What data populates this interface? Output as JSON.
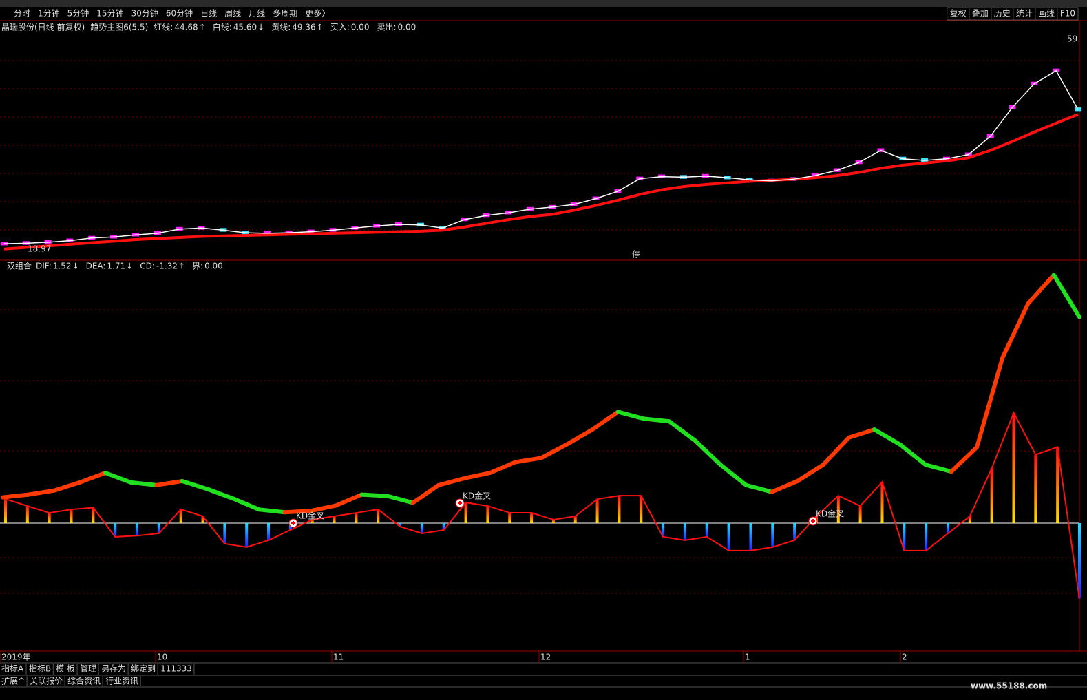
{
  "toolbar": {
    "periods": [
      "分时",
      "1分钟",
      "5分钟",
      "15分钟",
      "30分钟",
      "60分钟",
      "日线",
      "周线",
      "月线",
      "多周期",
      "更多〉"
    ],
    "active": 6,
    "tools": [
      "复权",
      "叠加",
      "历史",
      "统计",
      "画线",
      "F10"
    ]
  },
  "main": {
    "stock": "晶瑞股份(日线 前复权)",
    "indicator": "趋势主图6(5,5)",
    "legend": [
      {
        "label": "红线:",
        "value": "44.68",
        "arrow": "↑",
        "color": "#ff2020"
      },
      {
        "label": "白线:",
        "value": "45.60",
        "arrow": "↓",
        "color": "#ffffff"
      },
      {
        "label": "黄线:",
        "value": "49.36",
        "arrow": "↑",
        "color": "#ffff00"
      },
      {
        "label": "买入:",
        "value": "0.00",
        "arrow": "",
        "color": "#ff2020"
      },
      {
        "label": "卖出:",
        "value": "0.00",
        "arrow": "",
        "color": "#20a0ff"
      }
    ],
    "low": 18.97,
    "high_text": "59.",
    "stop_mark": "停",
    "open": [
      19.7,
      19.8,
      20.0,
      20.3,
      20.8,
      21.0,
      21.4,
      21.7,
      22.5,
      22.7,
      23.0,
      22.5,
      21.7,
      21.8,
      22.0,
      22.3,
      22.7,
      23.1,
      23.4,
      24.0,
      23.4,
      24.3,
      25.1,
      25.6,
      26.3,
      26.7,
      27.2,
      28.3,
      29.7,
      32.1,
      32.5,
      33.1,
      32.6,
      33.0,
      32.6,
      31.7,
      32.0,
      32.7,
      33.7,
      35.2,
      37.5,
      36.6,
      36.3,
      35.9,
      36.7,
      40.2,
      45.7,
      50.2,
      52.7,
      46.0
    ],
    "close": [
      20.4,
      20.5,
      20.7,
      21.0,
      21.5,
      21.7,
      22.1,
      22.4,
      23.2,
      23.4,
      22.3,
      21.8,
      22.4,
      22.5,
      22.7,
      23.0,
      23.4,
      23.8,
      24.1,
      23.3,
      22.7,
      25.0,
      25.8,
      26.3,
      27.0,
      27.4,
      27.9,
      29.0,
      30.4,
      32.8,
      33.2,
      32.4,
      33.3,
      32.3,
      31.9,
      32.4,
      32.7,
      33.4,
      34.4,
      35.9,
      38.2,
      35.9,
      35.6,
      36.6,
      37.4,
      40.9,
      46.4,
      50.9,
      53.4,
      45.3
    ],
    "white_line": [
      20.0,
      20.1,
      20.3,
      20.6,
      21.1,
      21.3,
      21.7,
      22.0,
      22.8,
      23.0,
      22.6,
      22.1,
      22.0,
      22.1,
      22.3,
      22.6,
      23.0,
      23.4,
      23.7,
      23.6,
      23.0,
      24.6,
      25.4,
      25.9,
      26.6,
      27.0,
      27.5,
      28.6,
      30.0,
      32.4,
      32.8,
      32.7,
      32.9,
      32.6,
      32.2,
      32.0,
      32.3,
      33.0,
      34.0,
      35.5,
      37.8,
      36.2,
      35.9,
      36.2,
      37.0,
      40.5,
      46.0,
      50.5,
      53.0,
      45.6
    ],
    "red_line": [
      19.0,
      19.3,
      19.6,
      19.9,
      20.2,
      20.5,
      20.8,
      21.0,
      21.2,
      21.4,
      21.5,
      21.6,
      21.7,
      21.8,
      21.9,
      22.0,
      22.1,
      22.2,
      22.3,
      22.4,
      22.6,
      23.2,
      23.9,
      24.6,
      25.2,
      25.6,
      26.4,
      27.3,
      28.3,
      29.4,
      30.3,
      30.9,
      31.3,
      31.6,
      31.9,
      32.1,
      32.3,
      32.6,
      33.0,
      33.6,
      34.4,
      35.0,
      35.4,
      35.8,
      36.4,
      37.8,
      39.5,
      41.3,
      43.0,
      44.68
    ],
    "up_color": "#ff20ff",
    "down_color": "#40e0ff",
    "red_color": "#ff1010"
  },
  "macd": {
    "name": "双组合",
    "legend": [
      {
        "label": "DIF:",
        "value": "1.52",
        "arrow": "↓",
        "color": "#ffffff"
      },
      {
        "label": "DEA:",
        "value": "1.71",
        "arrow": "↓",
        "color": "#ffff00"
      },
      {
        "label": "CD:",
        "value": "-1.32",
        "arrow": "↑",
        "color": "#ff2020"
      },
      {
        "label": "界:",
        "value": "0.00",
        "arrow": "",
        "color": "#20d0ff"
      }
    ],
    "dif": [
      0.19,
      0.21,
      0.24,
      0.3,
      0.37,
      0.3,
      0.28,
      0.31,
      0.25,
      0.18,
      0.1,
      0.08,
      0.09,
      0.13,
      0.21,
      0.2,
      0.15,
      0.28,
      0.33,
      0.37,
      0.45,
      0.48,
      0.58,
      0.69,
      0.82,
      0.77,
      0.75,
      0.61,
      0.43,
      0.28,
      0.23,
      0.31,
      0.43,
      0.63,
      0.69,
      0.58,
      0.43,
      0.38,
      0.56,
      1.22,
      1.62,
      1.83,
      1.52
    ],
    "hist": [
      0.42,
      0.3,
      0.18,
      0.24,
      0.27,
      -0.24,
      -0.22,
      -0.18,
      0.24,
      0.12,
      -0.36,
      -0.42,
      -0.3,
      -0.12,
      0.06,
      0.12,
      0.18,
      0.24,
      -0.06,
      -0.18,
      -0.12,
      0.36,
      0.3,
      0.18,
      0.18,
      0.06,
      0.12,
      0.42,
      0.48,
      0.48,
      -0.24,
      -0.3,
      -0.24,
      -0.48,
      -0.48,
      -0.42,
      -0.3,
      0.12,
      0.48,
      0.3,
      0.72,
      -0.48,
      -0.48,
      -0.18,
      0.12,
      0.96,
      1.93,
      1.2,
      1.33,
      -1.32
    ],
    "cross_labels": [
      "KD金叉",
      "KD金叉",
      "KD金叉"
    ]
  },
  "dates": [
    "2019年",
    "10",
    "11",
    "12",
    "1",
    "2"
  ],
  "tabs": [
    "指标A",
    "指标B",
    "模 板",
    "管理",
    "另存为",
    "绑定到",
    "111333"
  ],
  "tabs2": [
    "扩展^",
    "关联报价",
    "综合资讯",
    "行业资讯"
  ],
  "watermark": "www.55188.com"
}
